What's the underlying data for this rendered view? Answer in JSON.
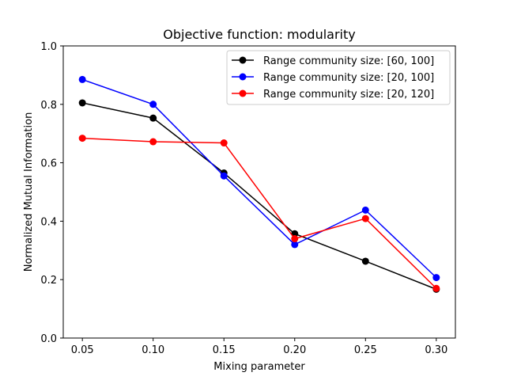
{
  "chart_data": {
    "type": "line",
    "title": "Objective function: modularity",
    "xlabel": "Mixing parameter",
    "ylabel": "Normalized Mutual Information",
    "x": [
      0.05,
      0.1,
      0.15,
      0.2,
      0.25,
      0.3
    ],
    "xtick_labels": [
      "0.05",
      "0.10",
      "0.15",
      "0.20",
      "0.25",
      "0.30"
    ],
    "ytick_values": [
      0.0,
      0.2,
      0.4,
      0.6,
      0.8,
      1.0
    ],
    "ytick_labels": [
      "0.0",
      "0.2",
      "0.4",
      "0.6",
      "0.8",
      "1.0"
    ],
    "xlim": [
      0.0365,
      0.3135
    ],
    "ylim": [
      0.0,
      1.0
    ],
    "grid": false,
    "legend_position": "top-right",
    "series": [
      {
        "name": "Range community size: [60, 100]",
        "color": "#000000",
        "values": [
          0.805,
          0.753,
          0.565,
          0.357,
          0.263,
          0.167
        ]
      },
      {
        "name": "Range community size: [20, 100]",
        "color": "#0000ff",
        "values": [
          0.885,
          0.8,
          0.555,
          0.32,
          0.438,
          0.207
        ]
      },
      {
        "name": "Range community size: [20, 120]",
        "color": "#ff0000",
        "values": [
          0.684,
          0.672,
          0.668,
          0.34,
          0.409,
          0.17
        ]
      }
    ]
  }
}
